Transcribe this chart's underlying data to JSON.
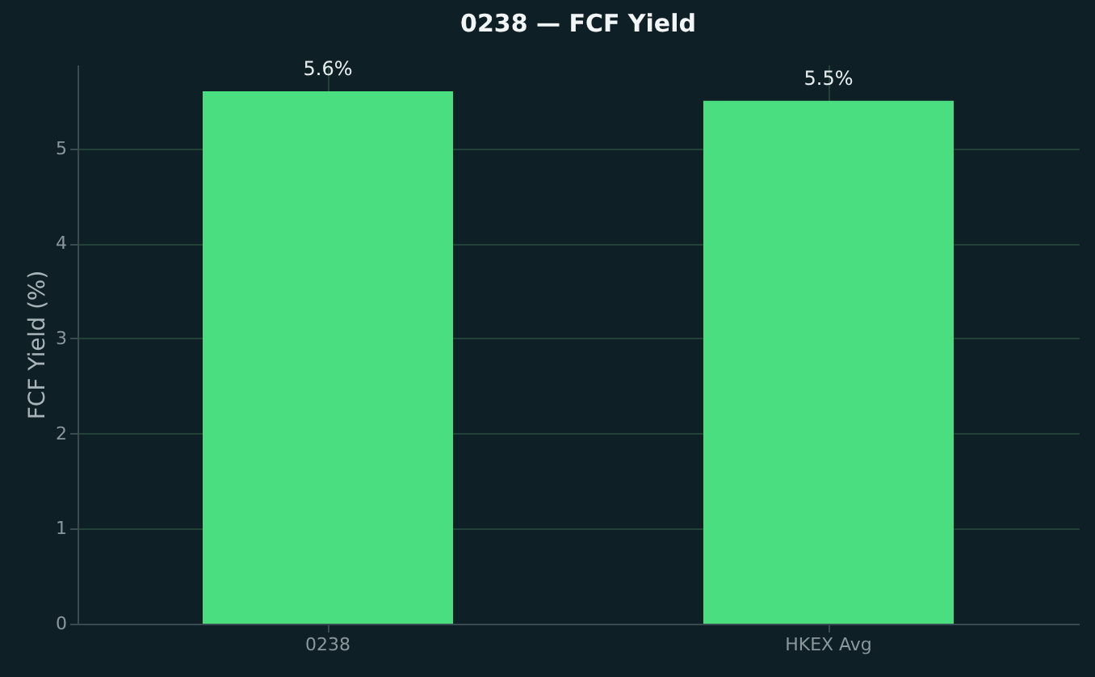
{
  "chart_data": {
    "type": "bar",
    "title": "0238 — FCF Yield",
    "ylabel": "FCF Yield (%)",
    "categories": [
      "0238",
      "HKEX Avg"
    ],
    "values": [
      5.6,
      5.5
    ],
    "value_labels": [
      "5.6%",
      "5.5%"
    ],
    "color": "#4ade80",
    "ylim": [
      0,
      5.88
    ],
    "yticks": [
      0,
      1,
      2,
      3,
      4,
      5
    ],
    "grid": true
  }
}
